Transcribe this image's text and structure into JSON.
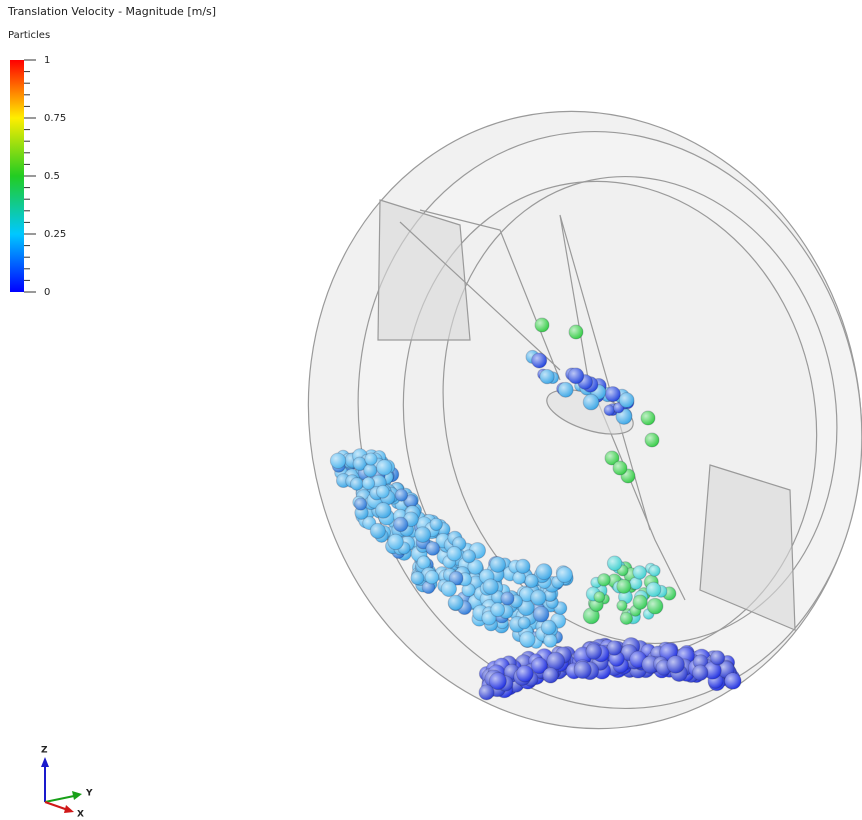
{
  "legend": {
    "title": "Translation Velocity - Magnitude [m/s]",
    "subtitle": "Particles",
    "ticks": [
      1,
      0.75,
      0.5,
      0.25,
      0
    ]
  },
  "triad": {
    "z": "Z",
    "y": "Y",
    "x": "X"
  }
}
